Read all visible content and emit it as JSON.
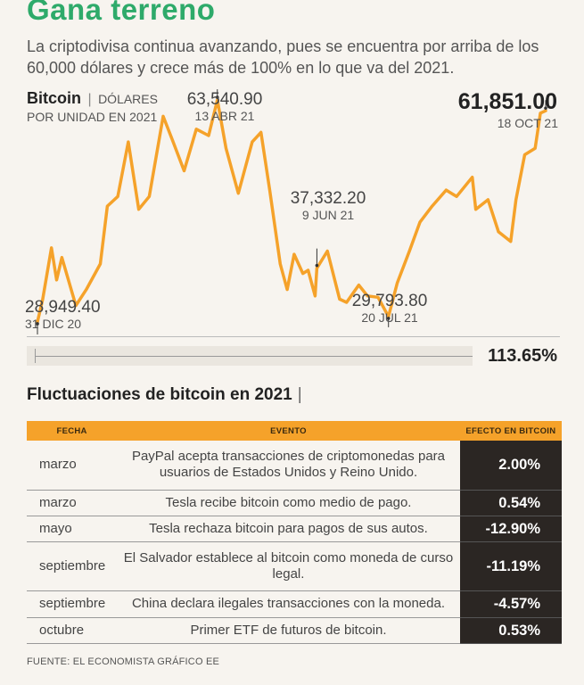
{
  "header": {
    "title": "Gana terreno",
    "subtitle": "La criptodivisa continua avanzando, pues se encuentra por arriba de los 60,000 dólares y crece más de 100% en lo que va del 2021."
  },
  "chart_head": {
    "series": "Bitcoin",
    "separator": "|",
    "unit_line1": "DÓLARES",
    "unit_line2": "POR UNIDAD EN 2021"
  },
  "colors": {
    "title": "#2eaa6a",
    "line": "#f5a22a",
    "table_header": "#f5a22a",
    "effect_bg": "#2b2623"
  },
  "chart_data": {
    "type": "line",
    "title": "",
    "xlabel": "",
    "ylabel": "",
    "series": [
      {
        "name": "Bitcoin",
        "values": [
          {
            "x": "2020-12-31",
            "y": 28949.4
          },
          {
            "x": "2021-01-03",
            "y": 32500
          },
          {
            "x": "2021-01-08",
            "y": 40500
          },
          {
            "x": "2021-01-11",
            "y": 35500
          },
          {
            "x": "2021-01-14",
            "y": 39000
          },
          {
            "x": "2021-01-22",
            "y": 31500
          },
          {
            "x": "2021-01-28",
            "y": 34000
          },
          {
            "x": "2021-02-05",
            "y": 38000
          },
          {
            "x": "2021-02-09",
            "y": 47000
          },
          {
            "x": "2021-02-15",
            "y": 48500
          },
          {
            "x": "2021-02-21",
            "y": 57000
          },
          {
            "x": "2021-02-27",
            "y": 46500
          },
          {
            "x": "2021-03-05",
            "y": 48500
          },
          {
            "x": "2021-03-13",
            "y": 61000
          },
          {
            "x": "2021-03-18",
            "y": 57500
          },
          {
            "x": "2021-03-25",
            "y": 52500
          },
          {
            "x": "2021-04-01",
            "y": 59000
          },
          {
            "x": "2021-04-08",
            "y": 58000
          },
          {
            "x": "2021-04-13",
            "y": 63540.9
          },
          {
            "x": "2021-04-18",
            "y": 56000
          },
          {
            "x": "2021-04-25",
            "y": 49000
          },
          {
            "x": "2021-05-03",
            "y": 57000
          },
          {
            "x": "2021-05-08",
            "y": 58500
          },
          {
            "x": "2021-05-13",
            "y": 49500
          },
          {
            "x": "2021-05-19",
            "y": 38000
          },
          {
            "x": "2021-05-23",
            "y": 34000
          },
          {
            "x": "2021-05-27",
            "y": 39500
          },
          {
            "x": "2021-06-01",
            "y": 36500
          },
          {
            "x": "2021-06-04",
            "y": 37000
          },
          {
            "x": "2021-06-08",
            "y": 33000
          },
          {
            "x": "2021-06-09",
            "y": 37332.2
          },
          {
            "x": "2021-06-15",
            "y": 40000
          },
          {
            "x": "2021-06-22",
            "y": 32500
          },
          {
            "x": "2021-06-26",
            "y": 32000
          },
          {
            "x": "2021-07-03",
            "y": 34700
          },
          {
            "x": "2021-07-08",
            "y": 33000
          },
          {
            "x": "2021-07-14",
            "y": 32800
          },
          {
            "x": "2021-07-20",
            "y": 29793.8
          },
          {
            "x": "2021-07-25",
            "y": 35000
          },
          {
            "x": "2021-08-01",
            "y": 40000
          },
          {
            "x": "2021-08-07",
            "y": 44500
          },
          {
            "x": "2021-08-14",
            "y": 47000
          },
          {
            "x": "2021-08-22",
            "y": 49500
          },
          {
            "x": "2021-08-28",
            "y": 48500
          },
          {
            "x": "2021-09-06",
            "y": 51500
          },
          {
            "x": "2021-09-08",
            "y": 46500
          },
          {
            "x": "2021-09-15",
            "y": 48000
          },
          {
            "x": "2021-09-21",
            "y": 43000
          },
          {
            "x": "2021-09-28",
            "y": 41500
          },
          {
            "x": "2021-10-01",
            "y": 48000
          },
          {
            "x": "2021-10-06",
            "y": 55000
          },
          {
            "x": "2021-10-12",
            "y": 56000
          },
          {
            "x": "2021-10-15",
            "y": 61500
          },
          {
            "x": "2021-10-18",
            "y": 61851.0
          }
        ]
      }
    ],
    "ylim": [
      27000,
      68000
    ],
    "grid": false,
    "annotations": [
      {
        "value": "28,949.40",
        "date": "31 DIC 20",
        "x": "2020-12-31"
      },
      {
        "value": "63,540.90",
        "date": "13 ABR 21",
        "x": "2021-04-13"
      },
      {
        "value": "37,332.20",
        "date": "9 JUN 21",
        "x": "2021-06-09"
      },
      {
        "value": "29,793.80",
        "date": "20 JUL 21",
        "x": "2021-07-20"
      },
      {
        "value": "61,851.00",
        "date": "18 OCT 21",
        "x": "2021-10-18"
      }
    ],
    "change_label": "113.65%"
  },
  "table": {
    "title": "Fluctuaciones de bitcoin en 2021",
    "title_bar": "|",
    "headers": {
      "date": "FECHA",
      "event": "EVENTO",
      "effect": "EFECTO  EN  BITCOIN"
    },
    "rows": [
      {
        "date": "marzo",
        "event": "PayPal acepta transacciones de criptomonedas para usuarios de Estados Unidos y Reino Unido.",
        "effect": "2.00%"
      },
      {
        "date": "marzo",
        "event": "Tesla recibe bitcoin como medio de pago.",
        "effect": "0.54%"
      },
      {
        "date": "mayo",
        "event": "Tesla rechaza bitcoin para pagos de sus autos.",
        "effect": "-12.90%"
      },
      {
        "date": "septiembre",
        "event": "El Salvador establece al bitcoin como moneda de curso legal.",
        "effect": "-11.19%"
      },
      {
        "date": "septiembre",
        "event": "China declara ilegales transacciones con la moneda.",
        "effect": "-4.57%"
      },
      {
        "date": "octubre",
        "event": "Primer ETF de futuros de bitcoin.",
        "effect": "0.53%"
      }
    ]
  },
  "source": "FUENTE: EL ECONOMISTA GRÁFICO EE"
}
